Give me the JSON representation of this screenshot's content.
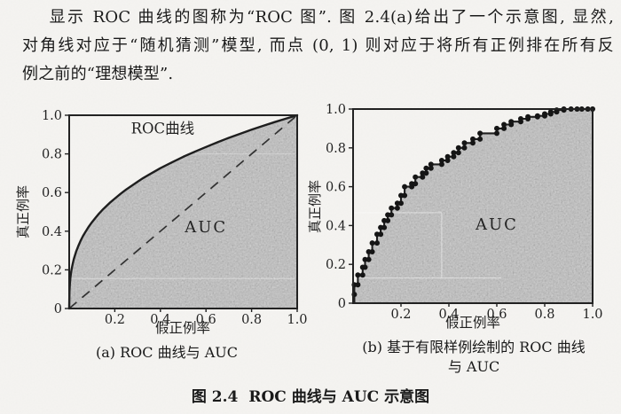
{
  "colors": {
    "ink": "#1a1a1a",
    "area": "#b5b5b5",
    "curve": "#161616",
    "dot": "#0d0d0d",
    "dash": "#2b2b2b",
    "paper": "#f6f5f2"
  },
  "paragraph": {
    "lines": [
      "显示 ROC 曲线的图称为“ROC 图”. 图 2.4(a)给出了一个示意图, 显然,",
      "对角线对应于“随机猜测”模型, 而点 (0, 1) 则对应于将所有正例排在所有反",
      "例之前的“理想模型”."
    ]
  },
  "figure": {
    "caption_a": "(a) ROC 曲线与 AUC",
    "caption_b_line1": "(b) 基于有限样例绘制的 ROC 曲线",
    "caption_b_line2": "与 AUC",
    "label": "图 2.4",
    "title": "ROC 曲线与 AUC 示意图"
  },
  "chart_data": [
    {
      "id": "roc-smooth",
      "type": "line",
      "caption": "(a) ROC 曲线与 AUC",
      "xlabel": "假正例率",
      "ylabel": "真正例率",
      "xlim": [
        0,
        1
      ],
      "ylim": [
        0,
        1
      ],
      "grid": false,
      "xticks": [
        {
          "v": 0.2,
          "label": "0.2"
        },
        {
          "v": 0.4,
          "label": "0.4"
        },
        {
          "v": 0.6,
          "label": "0.6"
        },
        {
          "v": 0.8,
          "label": "0.8"
        },
        {
          "v": 1,
          "label": "1.0"
        }
      ],
      "yticks": [
        {
          "v": 0,
          "label": "0"
        },
        {
          "v": 0.2,
          "label": "0.2"
        },
        {
          "v": 0.4,
          "label": "0.4"
        },
        {
          "v": 0.6,
          "label": "0.6"
        },
        {
          "v": 0.8,
          "label": "0.8"
        },
        {
          "v": 1,
          "label": "1.0"
        }
      ],
      "curve": [
        [
          0,
          0
        ],
        [
          0.001,
          0.089
        ],
        [
          0.003,
          0.131
        ],
        [
          0.005,
          0.157
        ],
        [
          0.007,
          0.176
        ],
        [
          0.01,
          0.2
        ],
        [
          0.015,
          0.23
        ],
        [
          0.02,
          0.254
        ],
        [
          0.03,
          0.293
        ],
        [
          0.04,
          0.324
        ],
        [
          0.05,
          0.35
        ],
        [
          0.06,
          0.374
        ],
        [
          0.07,
          0.394
        ],
        [
          0.085,
          0.422
        ],
        [
          0.1,
          0.447
        ],
        [
          0.115,
          0.469
        ],
        [
          0.13,
          0.49
        ],
        [
          0.15,
          0.515
        ],
        [
          0.165,
          0.532
        ],
        [
          0.18,
          0.549
        ],
        [
          0.2,
          0.569
        ],
        [
          0.225,
          0.593
        ],
        [
          0.25,
          0.616
        ],
        [
          0.275,
          0.636
        ],
        [
          0.3,
          0.656
        ],
        [
          0.325,
          0.675
        ],
        [
          0.35,
          0.692
        ],
        [
          0.4,
          0.726
        ],
        [
          0.45,
          0.756
        ],
        [
          0.5,
          0.785
        ],
        [
          0.55,
          0.811
        ],
        [
          0.6,
          0.836
        ],
        [
          0.65,
          0.86
        ],
        [
          0.7,
          0.883
        ],
        [
          0.75,
          0.904
        ],
        [
          0.8,
          0.925
        ],
        [
          0.85,
          0.945
        ],
        [
          0.9,
          0.964
        ],
        [
          0.95,
          0.982
        ],
        [
          1,
          1
        ]
      ],
      "diagonal": {
        "from": [
          0,
          0
        ],
        "to": [
          1,
          1
        ],
        "style": "dashed"
      },
      "area_fill": true,
      "annotations": [
        {
          "text": "ROC曲线",
          "x": 0.41,
          "y": 0.905,
          "size": 16.5,
          "spacing": 0
        },
        {
          "text": "AUC",
          "x": 0.6,
          "y": 0.395,
          "size": 18,
          "spacing": 2
        }
      ]
    },
    {
      "id": "roc-steps",
      "type": "step",
      "caption": "(b) 基于有限样例绘制的 ROC 曲线 与 AUC",
      "xlabel": "假正例率",
      "ylabel": "真正例率",
      "xlim": [
        0,
        1
      ],
      "ylim": [
        0,
        1
      ],
      "grid": false,
      "xticks": [
        {
          "v": 0.2,
          "label": "0.2"
        },
        {
          "v": 0.4,
          "label": "0.4"
        },
        {
          "v": 0.6,
          "label": "0.6"
        },
        {
          "v": 0.8,
          "label": "0.8"
        },
        {
          "v": 1,
          "label": "1.0"
        }
      ],
      "yticks": [
        {
          "v": 0,
          "label": "0"
        },
        {
          "v": 0.2,
          "label": "0.2"
        },
        {
          "v": 0.4,
          "label": "0.4"
        },
        {
          "v": 0.6,
          "label": "0.6"
        },
        {
          "v": 0.8,
          "label": "0.8"
        },
        {
          "v": 1,
          "label": "1.0"
        }
      ],
      "steps": [
        [
          0.005,
          0
        ],
        [
          0.005,
          0.045
        ],
        [
          0.005,
          0.095
        ],
        [
          0.02,
          0.095
        ],
        [
          0.02,
          0.145
        ],
        [
          0.04,
          0.145
        ],
        [
          0.04,
          0.185
        ],
        [
          0.05,
          0.185
        ],
        [
          0.05,
          0.225
        ],
        [
          0.065,
          0.225
        ],
        [
          0.065,
          0.265
        ],
        [
          0.08,
          0.265
        ],
        [
          0.08,
          0.31
        ],
        [
          0.1,
          0.31
        ],
        [
          0.1,
          0.355
        ],
        [
          0.115,
          0.355
        ],
        [
          0.115,
          0.39
        ],
        [
          0.13,
          0.39
        ],
        [
          0.13,
          0.425
        ],
        [
          0.145,
          0.425
        ],
        [
          0.145,
          0.455
        ],
        [
          0.16,
          0.455
        ],
        [
          0.16,
          0.49
        ],
        [
          0.185,
          0.49
        ],
        [
          0.185,
          0.515
        ],
        [
          0.2,
          0.515
        ],
        [
          0.2,
          0.555
        ],
        [
          0.215,
          0.555
        ],
        [
          0.215,
          0.6
        ],
        [
          0.245,
          0.6
        ],
        [
          0.245,
          0.615
        ],
        [
          0.26,
          0.615
        ],
        [
          0.26,
          0.65
        ],
        [
          0.29,
          0.65
        ],
        [
          0.29,
          0.67
        ],
        [
          0.305,
          0.67
        ],
        [
          0.305,
          0.695
        ],
        [
          0.325,
          0.695
        ],
        [
          0.325,
          0.715
        ],
        [
          0.37,
          0.715
        ],
        [
          0.37,
          0.735
        ],
        [
          0.395,
          0.735
        ],
        [
          0.395,
          0.755
        ],
        [
          0.42,
          0.755
        ],
        [
          0.42,
          0.775
        ],
        [
          0.44,
          0.775
        ],
        [
          0.44,
          0.8
        ],
        [
          0.465,
          0.8
        ],
        [
          0.465,
          0.825
        ],
        [
          0.5,
          0.825
        ],
        [
          0.5,
          0.845
        ],
        [
          0.53,
          0.845
        ],
        [
          0.53,
          0.875
        ],
        [
          0.6,
          0.875
        ],
        [
          0.6,
          0.9
        ],
        [
          0.63,
          0.9
        ],
        [
          0.63,
          0.92
        ],
        [
          0.66,
          0.92
        ],
        [
          0.66,
          0.935
        ],
        [
          0.7,
          0.935
        ],
        [
          0.7,
          0.95
        ],
        [
          0.73,
          0.95
        ],
        [
          0.73,
          0.96
        ],
        [
          0.77,
          0.96
        ],
        [
          0.77,
          0.965
        ],
        [
          0.8,
          0.965
        ],
        [
          0.8,
          0.975
        ],
        [
          0.825,
          0.975
        ],
        [
          0.825,
          0.985
        ],
        [
          0.85,
          0.985
        ],
        [
          0.85,
          0.995
        ],
        [
          0.88,
          0.995
        ],
        [
          0.88,
          1
        ],
        [
          0.91,
          1
        ],
        [
          0.935,
          1
        ],
        [
          0.955,
          1
        ],
        [
          0.98,
          1
        ],
        [
          1,
          1
        ]
      ],
      "markers": true,
      "area_fill": true,
      "annotations": [
        {
          "text": "AUC",
          "x": 0.6,
          "y": 0.38,
          "size": 18,
          "spacing": 2
        }
      ]
    }
  ]
}
